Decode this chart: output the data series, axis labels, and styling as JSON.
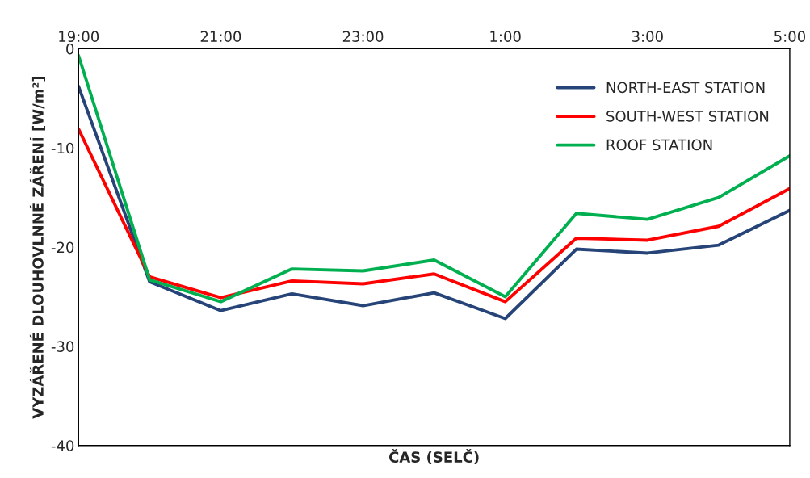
{
  "chart_data": {
    "type": "line",
    "xlabel": "ČAS (SELČ)",
    "ylabel": "VYZÁŘENÉ DLOUHOVLNNÉ ZÁŘENÍ [W/m²]",
    "categories": [
      "19:00",
      null,
      "21:00",
      null,
      "23:00",
      null,
      "1:00",
      null,
      "3:00",
      null,
      "5:00"
    ],
    "ylim": [
      -40,
      0
    ],
    "yticks": [
      -40,
      -30,
      -20,
      -10,
      0
    ],
    "series": [
      {
        "name": "NORTH-EAST STATION",
        "color": "#264478",
        "values": [
          -3.8,
          -23.5,
          -26.4,
          -24.7,
          -25.9,
          -24.6,
          -27.2,
          -20.2,
          -20.6,
          -19.8,
          -16.3
        ]
      },
      {
        "name": "SOUTH-WEST STATION",
        "color": "#ff0000",
        "values": [
          -8.1,
          -23.0,
          -25.1,
          -23.4,
          -23.7,
          -22.7,
          -25.5,
          -19.1,
          -19.3,
          -17.9,
          -14.1
        ]
      },
      {
        "name": "ROOF STATION",
        "color": "#00b050",
        "values": [
          -0.7,
          -23.3,
          -25.5,
          -22.2,
          -22.4,
          -21.3,
          -25.0,
          -16.6,
          -17.2,
          -15.0,
          -10.8
        ]
      }
    ],
    "legend": "top right",
    "grid": false
  }
}
